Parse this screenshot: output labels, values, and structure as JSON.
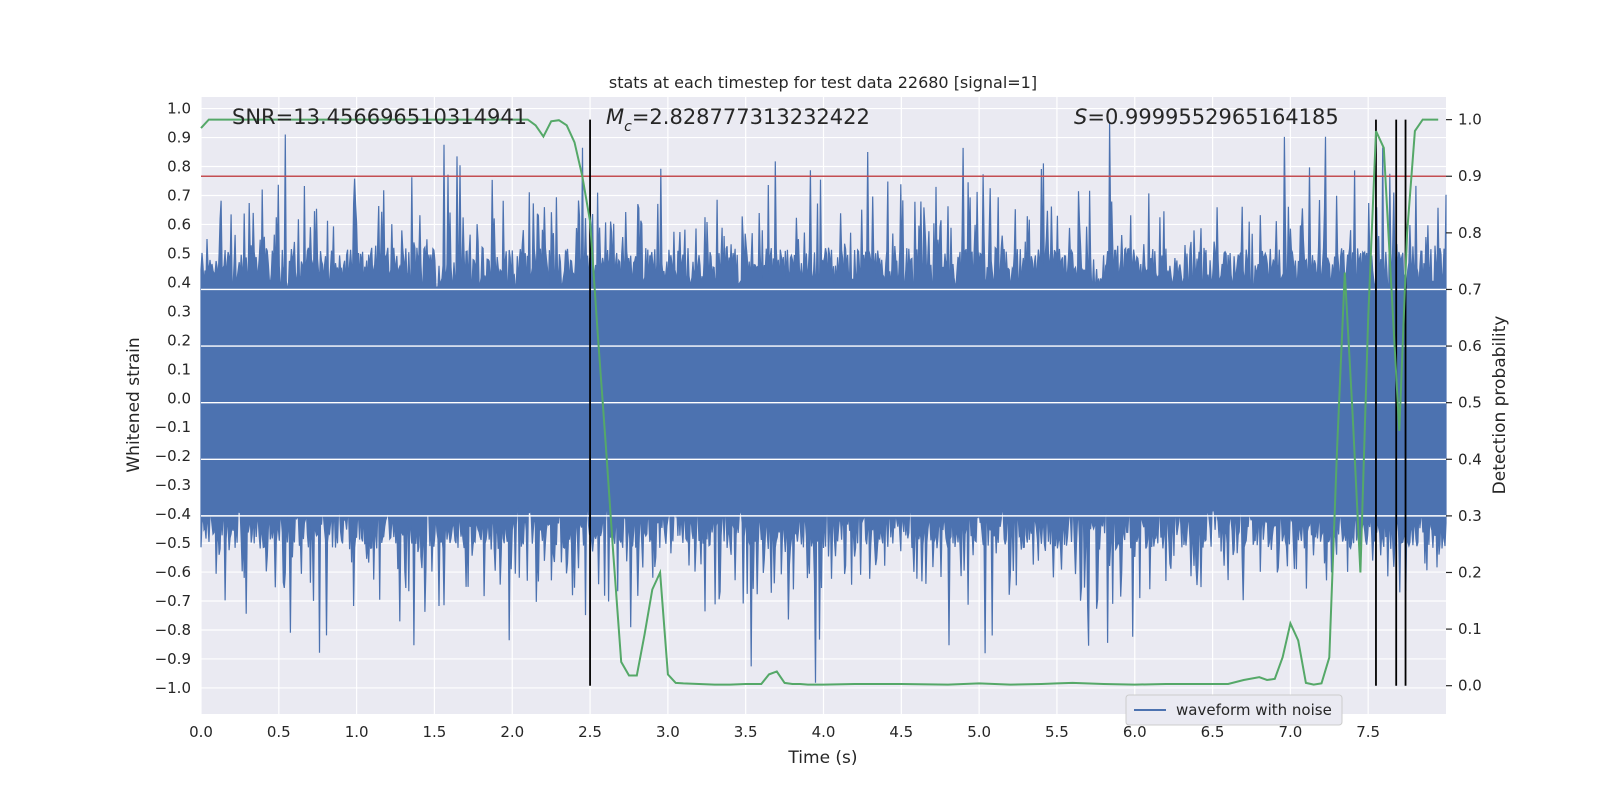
{
  "chart_data": {
    "type": "line",
    "title": "stats at each timestep for test data 22680 [signal=1]",
    "xlabel": "Time (s)",
    "ylabel": "Whitened strain",
    "y2label": "Detection probability",
    "xlim": [
      0.0,
      8.0
    ],
    "ylim": [
      -1.09,
      1.04
    ],
    "y2lim": [
      -0.05,
      1.04
    ],
    "xticks": [
      "0.0",
      "0.5",
      "1.0",
      "1.5",
      "2.0",
      "2.5",
      "3.0",
      "3.5",
      "4.0",
      "4.5",
      "5.0",
      "5.5",
      "6.0",
      "6.5",
      "7.0",
      "7.5"
    ],
    "yticks": [
      "1.0",
      "0.9",
      "0.8",
      "0.7",
      "0.6",
      "0.5",
      "0.4",
      "0.3",
      "0.2",
      "0.1",
      "0.0",
      "−0.1",
      "−0.2",
      "−0.3",
      "−0.4",
      "−0.5",
      "−0.6",
      "−0.7",
      "−0.8",
      "−0.9",
      "−1.0"
    ],
    "y2ticks": [
      "1.0",
      "0.9",
      "0.8",
      "0.7",
      "0.6",
      "0.5",
      "0.4",
      "0.3",
      "0.2",
      "0.1",
      "0.0"
    ],
    "grid": true,
    "legend_placement": "lower-right",
    "annotations": {
      "snr": "SNR=13.456696510314941",
      "mc_symbol": "M",
      "mc_subscript": "c",
      "mc_value": "=2.828777313232422",
      "s_symbol": "S",
      "s_value": "=0.9999552965164185"
    },
    "series": [
      {
        "name": "waveform with noise",
        "color": "#4c72b0",
        "description_envelope_max": 0.95,
        "description_envelope_min": -1.0
      },
      {
        "color": "#55a868",
        "axis": "right",
        "x": [
          0.0,
          0.05,
          0.1,
          0.2,
          0.3,
          0.5,
          1.0,
          1.5,
          2.0,
          2.1,
          2.15,
          2.2,
          2.25,
          2.3,
          2.35,
          2.4,
          2.45,
          2.5,
          2.55,
          2.6,
          2.65,
          2.7,
          2.75,
          2.8,
          2.85,
          2.9,
          2.95,
          3.0,
          3.05,
          3.1,
          3.2,
          3.3,
          3.4,
          3.5,
          3.6,
          3.65,
          3.7,
          3.75,
          3.8,
          3.85,
          3.9,
          4.0,
          4.2,
          4.5,
          4.8,
          5.0,
          5.2,
          5.4,
          5.5,
          5.6,
          5.8,
          6.0,
          6.2,
          6.4,
          6.6,
          6.7,
          6.8,
          6.85,
          6.9,
          6.95,
          7.0,
          7.05,
          7.1,
          7.15,
          7.2,
          7.25,
          7.3,
          7.35,
          7.4,
          7.45,
          7.5,
          7.55,
          7.6,
          7.65,
          7.7,
          7.75,
          7.8,
          7.85,
          7.9,
          7.95
        ],
        "values": [
          0.985,
          1.0,
          1.0,
          1.0,
          1.0,
          1.0,
          1.0,
          1.0,
          1.0,
          1.0,
          0.99,
          0.97,
          0.997,
          0.999,
          0.99,
          0.96,
          0.9,
          0.82,
          0.62,
          0.43,
          0.23,
          0.042,
          0.018,
          0.018,
          0.09,
          0.17,
          0.2,
          0.02,
          0.005,
          0.004,
          0.003,
          0.002,
          0.002,
          0.003,
          0.003,
          0.02,
          0.025,
          0.005,
          0.003,
          0.003,
          0.002,
          0.002,
          0.003,
          0.003,
          0.002,
          0.004,
          0.002,
          0.003,
          0.004,
          0.005,
          0.003,
          0.002,
          0.003,
          0.003,
          0.003,
          0.01,
          0.015,
          0.01,
          0.012,
          0.05,
          0.11,
          0.08,
          0.005,
          0.002,
          0.004,
          0.05,
          0.42,
          0.73,
          0.48,
          0.2,
          0.65,
          0.98,
          0.95,
          0.7,
          0.45,
          0.8,
          0.98,
          1.0,
          1.0,
          1.0
        ]
      }
    ],
    "threshold": {
      "value": 0.9,
      "axis": "right",
      "color": "#c44e52"
    },
    "vertical_markers": [
      2.5,
      7.55,
      7.68,
      7.74
    ],
    "marker_color": "#000000"
  }
}
